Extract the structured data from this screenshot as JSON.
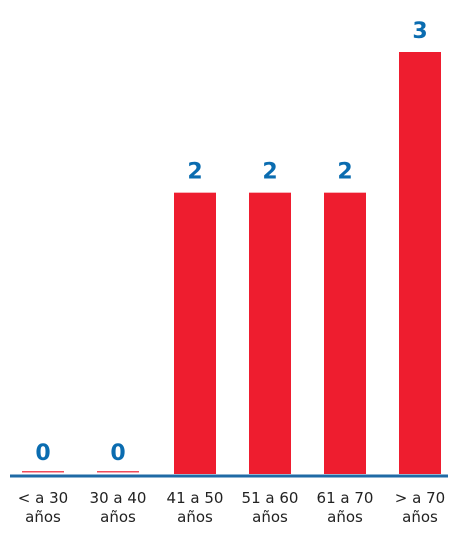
{
  "chart_data": {
    "type": "bar",
    "title": "",
    "xlabel": "",
    "ylabel": "",
    "categories": [
      [
        "< a 30",
        "años"
      ],
      [
        "30 a 40",
        "años"
      ],
      [
        "41 a 50",
        "años"
      ],
      [
        "51 a 60",
        "años"
      ],
      [
        "61 a 70",
        "años"
      ],
      [
        "> a 70",
        "años"
      ]
    ],
    "values": [
      0,
      0,
      2,
      2,
      2,
      3
    ],
    "ylim": [
      0,
      3
    ],
    "grid": false,
    "legend": "none",
    "colors": {
      "bar": "#ee1d2f",
      "value_label": "#0a6cb0",
      "baseline": "#1f6aa5",
      "tick_label": "#222222"
    }
  }
}
